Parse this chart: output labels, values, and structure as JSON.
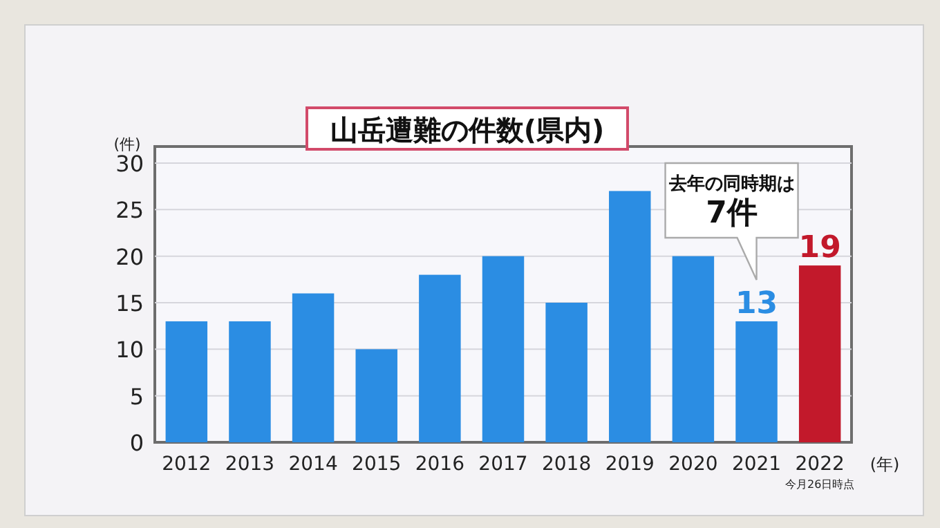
{
  "chart_data": {
    "type": "bar",
    "title": "山岳遭難の件数(県内)",
    "ylabel": "(件)",
    "xlabel": "(年)",
    "categories": [
      "2012",
      "2013",
      "2014",
      "2015",
      "2016",
      "2017",
      "2018",
      "2019",
      "2020",
      "2021",
      "2022"
    ],
    "values": [
      13,
      13,
      16,
      10,
      18,
      20,
      15,
      27,
      20,
      13,
      19
    ],
    "colors": [
      "#2b8de3",
      "#2b8de3",
      "#2b8de3",
      "#2b8de3",
      "#2b8de3",
      "#2b8de3",
      "#2b8de3",
      "#2b8de3",
      "#2b8de3",
      "#2b8de3",
      "#c2192b"
    ],
    "value_labels": [
      null,
      null,
      null,
      null,
      null,
      null,
      null,
      null,
      null,
      "13",
      "19"
    ],
    "ylim": [
      0,
      30
    ],
    "yticks": [
      0,
      5,
      10,
      15,
      20,
      25,
      30
    ],
    "grid": "y",
    "annotations": [
      "去年の同時期は",
      "7件",
      "今月26日時点"
    ]
  }
}
